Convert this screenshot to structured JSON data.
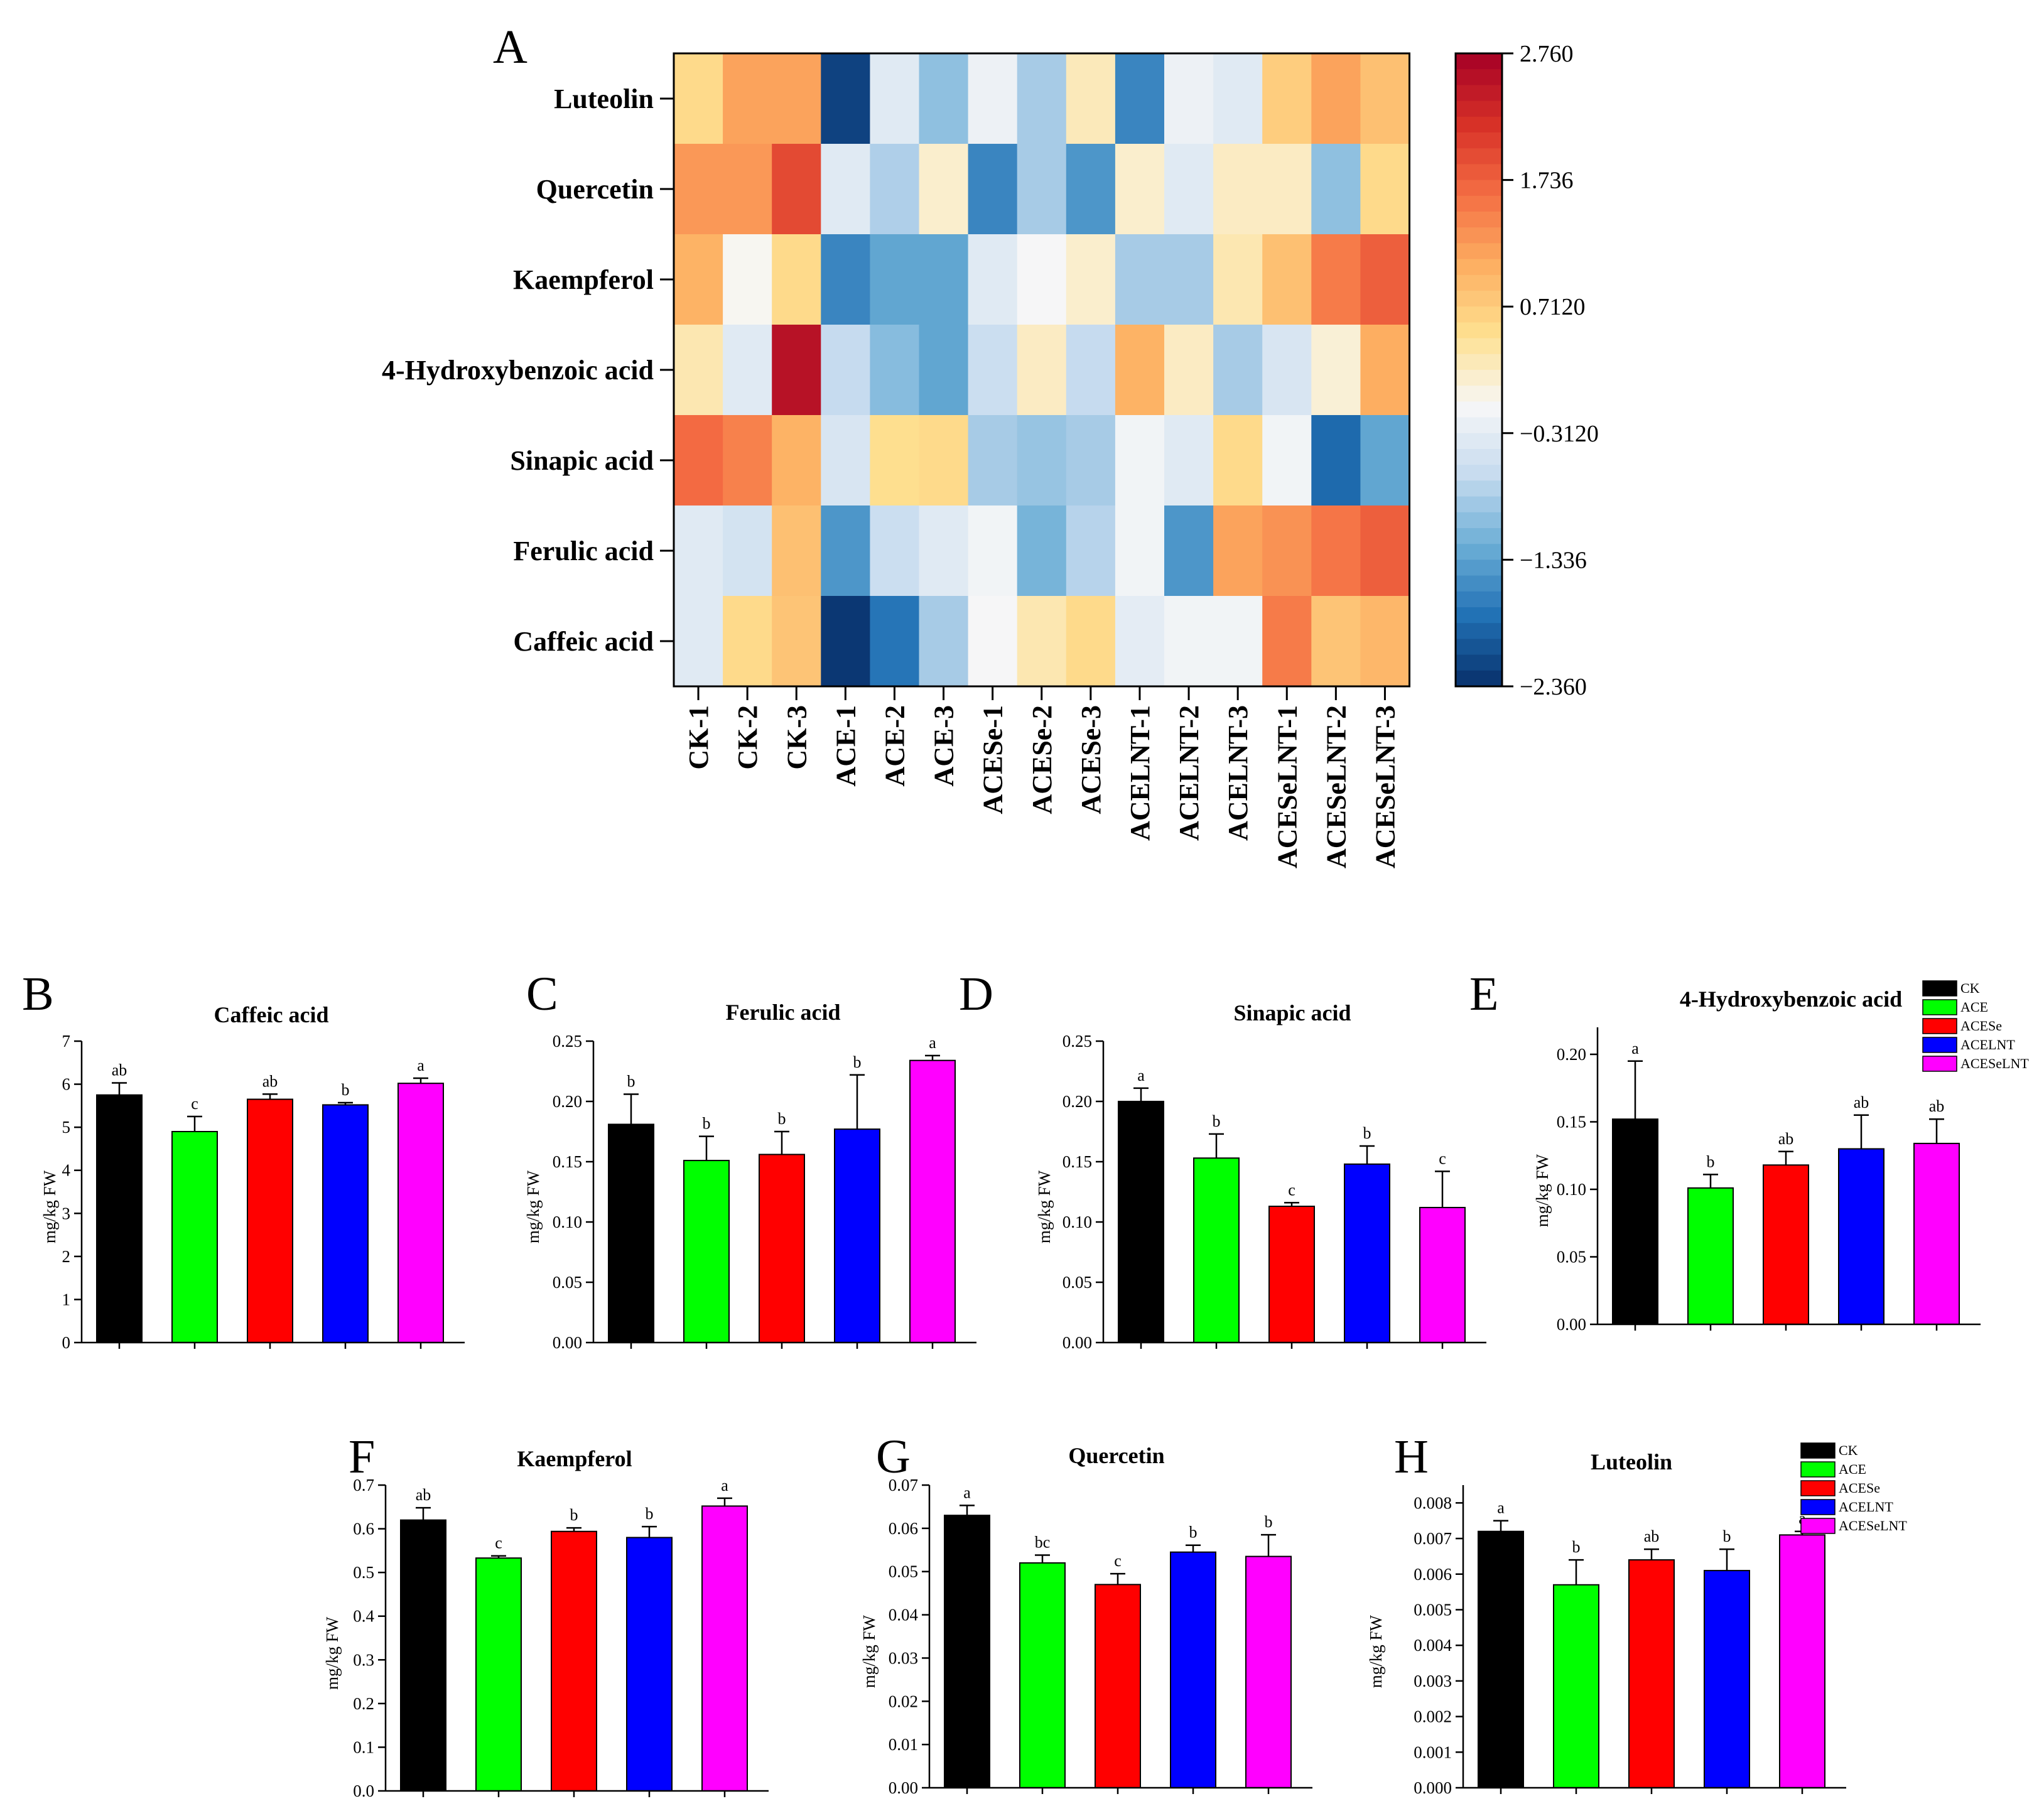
{
  "heatmap": {
    "panel_label": "A",
    "rows": [
      "Luteolin",
      "Quercetin",
      "Kaempferol",
      "4-Hydroxybenzoic acid",
      "Sinapic acid",
      "Ferulic acid",
      "Caffeic acid"
    ],
    "columns": [
      "CK-1",
      "CK-2",
      "CK-3",
      "ACE-1",
      "ACE-2",
      "ACE-3",
      "ACESe-1",
      "ACESe-2",
      "ACESe-3",
      "ACELNT-1",
      "ACELNT-2",
      "ACELNT-3",
      "ACESeLNT-1",
      "ACESeLNT-2",
      "ACESeLNT-3"
    ],
    "values": [
      [
        0.55,
        1.15,
        1.15,
        -2.2,
        -0.35,
        -1.0,
        -0.2,
        -0.85,
        0.25,
        -1.6,
        -0.2,
        -0.35,
        0.7,
        1.15,
        0.85
      ],
      [
        1.25,
        1.25,
        1.95,
        -0.35,
        -0.8,
        0.15,
        -1.6,
        -0.85,
        -1.45,
        0.15,
        -0.35,
        0.2,
        0.2,
        -1.0,
        0.55
      ],
      [
        1.0,
        -0.05,
        0.55,
        -1.6,
        -1.3,
        -1.3,
        -0.35,
        -0.1,
        0.15,
        -0.85,
        -0.85,
        0.3,
        0.85,
        1.5,
        1.75
      ],
      [
        0.3,
        -0.35,
        2.55,
        -0.65,
        -1.05,
        -1.3,
        -0.6,
        0.2,
        -0.65,
        1.0,
        0.2,
        -0.85,
        -0.45,
        0.1,
        1.05
      ],
      [
        1.65,
        1.45,
        1.0,
        -0.45,
        0.5,
        0.55,
        -0.85,
        -0.95,
        -0.85,
        -0.15,
        -0.35,
        0.55,
        -0.15,
        -1.85,
        -1.3
      ],
      [
        -0.35,
        -0.5,
        0.85,
        -1.45,
        -0.6,
        -0.35,
        -0.15,
        -1.15,
        -0.75,
        -0.15,
        -1.45,
        1.15,
        1.3,
        1.55,
        1.75
      ],
      [
        -0.35,
        0.55,
        0.8,
        -2.3,
        -1.75,
        -0.85,
        -0.1,
        0.3,
        0.55,
        -0.3,
        -0.15,
        -0.15,
        1.5,
        0.8,
        0.95
      ]
    ],
    "colorbar": {
      "min": -2.36,
      "max": 2.76,
      "tick_values": [
        2.76,
        1.736,
        0.712,
        -0.312,
        -1.336,
        -2.36
      ],
      "tick_labels": [
        "2.760",
        "1.736",
        "0.7120",
        "−0.3120",
        "−1.336",
        "−2.360"
      ]
    },
    "colormap": [
      "#08306b",
      "#2171b5",
      "#6baed6",
      "#c6dbef",
      "#f7f7f7",
      "#fee090",
      "#fdae61",
      "#f46d43",
      "#d73027",
      "#a50026"
    ]
  },
  "groups": [
    "CK",
    "ACE",
    "ACESe",
    "ACELNT",
    "ACESeLNT"
  ],
  "group_colors": [
    "#000000",
    "#00ff00",
    "#ff0000",
    "#0000ff",
    "#ff00ff"
  ],
  "y_unit_label": "mg/kg FW",
  "chart_data": [
    {
      "panel_label": "B",
      "type": "bar",
      "title": "Caffeic acid",
      "ylabel": "mg/kg FW",
      "ylim": [
        0,
        7
      ],
      "ytick_labels": [
        "0",
        "1",
        "2",
        "3",
        "4",
        "5",
        "6",
        "7"
      ],
      "categories": [
        "CK",
        "ACE",
        "ACESe",
        "ACELNT",
        "ACESeLNT"
      ],
      "values": [
        5.75,
        4.9,
        5.65,
        5.52,
        6.02
      ],
      "errors": [
        0.28,
        0.35,
        0.12,
        0.05,
        0.12
      ],
      "significance": [
        "ab",
        "c",
        "ab",
        "b",
        "a"
      ]
    },
    {
      "panel_label": "C",
      "type": "bar",
      "title": "Ferulic acid",
      "ylabel": "mg/kg FW",
      "ylim": [
        0,
        0.25
      ],
      "ytick_labels": [
        "0.00",
        "0.05",
        "0.10",
        "0.15",
        "0.20",
        "0.25"
      ],
      "categories": [
        "CK",
        "ACE",
        "ACESe",
        "ACELNT",
        "ACESeLNT"
      ],
      "values": [
        0.181,
        0.151,
        0.156,
        0.177,
        0.234
      ],
      "errors": [
        0.025,
        0.02,
        0.019,
        0.045,
        0.004
      ],
      "significance": [
        "b",
        "b",
        "b",
        "b",
        "a"
      ]
    },
    {
      "panel_label": "D",
      "type": "bar",
      "title": "Sinapic acid",
      "ylabel": "mg/kg FW",
      "ylim": [
        0,
        0.25
      ],
      "ytick_labels": [
        "0.00",
        "0.05",
        "0.10",
        "0.15",
        "0.20",
        "0.25"
      ],
      "categories": [
        "CK",
        "ACE",
        "ACESe",
        "ACELNT",
        "ACESeLNT"
      ],
      "values": [
        0.2,
        0.153,
        0.113,
        0.148,
        0.112
      ],
      "errors": [
        0.011,
        0.02,
        0.003,
        0.015,
        0.03
      ],
      "significance": [
        "a",
        "b",
        "c",
        "b",
        "c"
      ]
    },
    {
      "panel_label": "E",
      "type": "bar",
      "title": "4-Hydroxybenzoic acid",
      "ylabel": "mg/kg FW",
      "ylim": [
        0,
        0.22
      ],
      "ytick_labels": [
        "0.00",
        "0.05",
        "0.10",
        "0.15",
        "0.20"
      ],
      "categories": [
        "CK",
        "ACE",
        "ACESe",
        "ACELNT",
        "ACESeLNT"
      ],
      "values": [
        0.152,
        0.101,
        0.118,
        0.13,
        0.134
      ],
      "errors": [
        0.043,
        0.01,
        0.01,
        0.025,
        0.018
      ],
      "significance": [
        "a",
        "b",
        "ab",
        "ab",
        "ab"
      ]
    },
    {
      "panel_label": "F",
      "type": "bar",
      "title": "Kaempferol",
      "ylabel": "mg/kg FW",
      "ylim": [
        0,
        0.7
      ],
      "ytick_labels": [
        "0.0",
        "0.1",
        "0.2",
        "0.3",
        "0.4",
        "0.5",
        "0.6",
        "0.7"
      ],
      "categories": [
        "CK",
        "ACE",
        "ACESe",
        "ACELNT",
        "ACESeLNT"
      ],
      "values": [
        0.62,
        0.533,
        0.594,
        0.58,
        0.652
      ],
      "errors": [
        0.028,
        0.005,
        0.008,
        0.025,
        0.018
      ],
      "significance": [
        "ab",
        "c",
        "b",
        "b",
        "a"
      ]
    },
    {
      "panel_label": "G",
      "type": "bar",
      "title": "Quercetin",
      "ylabel": "mg/kg FW",
      "ylim": [
        0,
        0.07
      ],
      "ytick_labels": [
        "0.00",
        "0.01",
        "0.02",
        "0.03",
        "0.04",
        "0.05",
        "0.06",
        "0.07"
      ],
      "categories": [
        "CK",
        "ACE",
        "ACESe",
        "ACELNT",
        "ACESeLNT"
      ],
      "values": [
        0.063,
        0.052,
        0.047,
        0.0545,
        0.0535
      ],
      "errors": [
        0.0023,
        0.0018,
        0.0025,
        0.0016,
        0.005
      ],
      "significance": [
        "a",
        "bc",
        "c",
        "b",
        "b"
      ]
    },
    {
      "panel_label": "H",
      "type": "bar",
      "title": "Luteolin",
      "ylabel": "mg/kg FW",
      "ylim": [
        0,
        0.0085
      ],
      "ytick_labels": [
        "0.000",
        "0.001",
        "0.002",
        "0.003",
        "0.004",
        "0.005",
        "0.006",
        "0.007",
        "0.008"
      ],
      "categories": [
        "CK",
        "ACE",
        "ACESe",
        "ACELNT",
        "ACESeLNT"
      ],
      "values": [
        0.0072,
        0.0057,
        0.0064,
        0.0061,
        0.0071
      ],
      "errors": [
        0.0003,
        0.0007,
        0.0003,
        0.0006,
        0.0001
      ],
      "significance": [
        "a",
        "b",
        "ab",
        "b",
        "a"
      ]
    }
  ]
}
